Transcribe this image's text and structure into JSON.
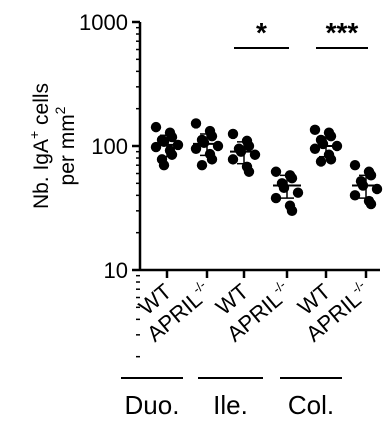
{
  "chart_data": {
    "type": "scatter",
    "ylabel_line1": "Nb. IgA",
    "ylabel_sup": "+",
    "ylabel_line1_end": " cells",
    "ylabel_line2": "per mm",
    "ylabel_line2_sup": "2",
    "yscale": "log",
    "ylim": [
      10,
      1000
    ],
    "yticks": [
      {
        "value": 10,
        "label": "10"
      },
      {
        "value": 100,
        "label": "100"
      },
      {
        "value": 1000,
        "label": "1000"
      }
    ],
    "groups": [
      {
        "label": "WT",
        "sup": "",
        "region": "Duo.",
        "mean": 102,
        "sd_low": 82,
        "sd_high": 122,
        "points": [
          142,
          128,
          118,
          112,
          108,
          102,
          98,
          92,
          85,
          78,
          70
        ]
      },
      {
        "label": "APRIL",
        "sup": "-/-",
        "region": "Duo.",
        "mean": 104,
        "sd_low": 84,
        "sd_high": 125,
        "points": [
          152,
          132,
          120,
          112,
          106,
          100,
          95,
          86,
          78,
          70
        ]
      },
      {
        "label": "WT",
        "sup": "",
        "region": "Ile.",
        "mean": 90,
        "sd_low": 72,
        "sd_high": 108,
        "points": [
          125,
          110,
          100,
          95,
          90,
          85,
          78,
          68,
          62
        ]
      },
      {
        "label": "APRIL",
        "sup": "-/-",
        "region": "Ile.",
        "mean": 48,
        "sd_low": 38,
        "sd_high": 58,
        "points": [
          62,
          58,
          55,
          50,
          46,
          42,
          38,
          33,
          30
        ]
      },
      {
        "label": "WT",
        "sup": "",
        "region": "Col.",
        "mean": 100,
        "sd_low": 82,
        "sd_high": 118,
        "points": [
          135,
          128,
          120,
          112,
          104,
          100,
          95,
          85,
          78,
          75
        ]
      },
      {
        "label": "APRIL",
        "sup": "-/-",
        "region": "Col.",
        "mean": 48,
        "sd_low": 38,
        "sd_high": 58,
        "points": [
          70,
          62,
          58,
          52,
          48,
          45,
          40,
          36,
          34
        ]
      }
    ],
    "regions": [
      "Duo.",
      "Ile.",
      "Col."
    ],
    "significance": [
      {
        "from": 2,
        "to": 3,
        "label": "*"
      },
      {
        "from": 4,
        "to": 5,
        "label": "***"
      }
    ]
  }
}
